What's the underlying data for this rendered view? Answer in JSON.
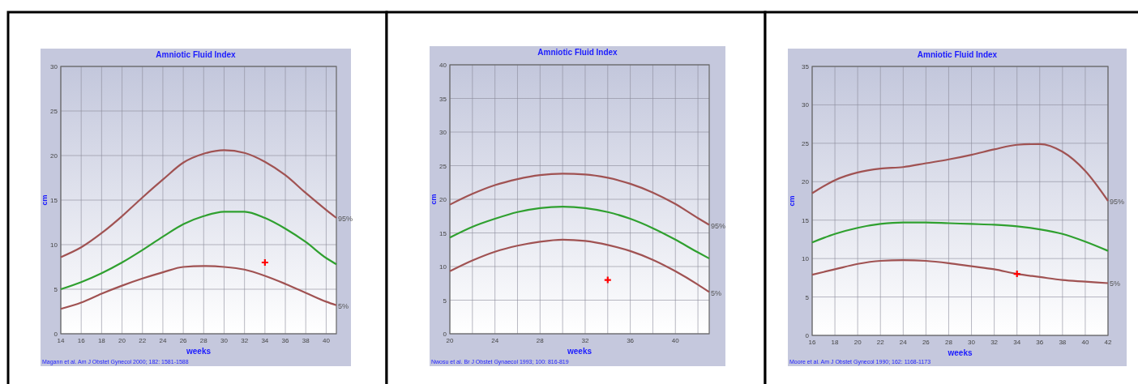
{
  "chart_data": [
    {
      "type": "line",
      "title": "Amniotic Fluid Index",
      "xlabel": "weeks",
      "ylabel": "cm",
      "xlim": [
        14,
        41
      ],
      "xticks": [
        14,
        16,
        18,
        20,
        22,
        24,
        26,
        28,
        30,
        32,
        34,
        36,
        38,
        40
      ],
      "ylim": [
        0,
        30
      ],
      "yticks": [
        0,
        5,
        10,
        15,
        20,
        25,
        30
      ],
      "grid": true,
      "annotations": [
        "Magann et al. Am J Obstet Gynecol 2000; 182: 1581-1588"
      ],
      "series": [
        {
          "name": "95%",
          "color": "#a05252",
          "x": [
            14,
            16,
            18,
            20,
            22,
            24,
            26,
            28,
            30,
            32,
            34,
            36,
            38,
            40,
            41
          ],
          "values": [
            8.6,
            9.7,
            11.3,
            13.2,
            15.3,
            17.3,
            19.2,
            20.2,
            20.6,
            20.3,
            19.3,
            17.8,
            15.8,
            13.9,
            13.0
          ]
        },
        {
          "color": "#2fa02f",
          "x": [
            14,
            16,
            18,
            20,
            22,
            24,
            26,
            28,
            30,
            32,
            34,
            36,
            38,
            40,
            41
          ],
          "values": [
            5.0,
            5.8,
            6.8,
            8.0,
            9.4,
            10.9,
            12.3,
            13.2,
            13.7,
            13.7,
            13.0,
            11.8,
            10.3,
            8.5,
            7.8
          ]
        },
        {
          "name": "5%",
          "color": "#a05252",
          "x": [
            14,
            16,
            18,
            20,
            22,
            24,
            26,
            28,
            30,
            32,
            34,
            36,
            38,
            40,
            41
          ],
          "values": [
            2.8,
            3.5,
            4.5,
            5.4,
            6.2,
            6.9,
            7.5,
            7.6,
            7.5,
            7.2,
            6.5,
            5.6,
            4.6,
            3.6,
            3.2
          ]
        },
        {
          "type": "scatter",
          "marker": "cross",
          "color": "#ff0000",
          "x": [
            34
          ],
          "values": [
            8
          ]
        }
      ]
    },
    {
      "type": "line",
      "title": "Amniotic Fluid Index",
      "xlabel": "weeks",
      "ylabel": "cm",
      "xlim": [
        20,
        43
      ],
      "xticks": [
        20,
        24,
        28,
        32,
        36,
        40
      ],
      "ylim": [
        0,
        40
      ],
      "yticks": [
        0,
        5,
        10,
        15,
        20,
        25,
        30,
        35,
        40
      ],
      "grid": true,
      "annotations": [
        "Nwosu et al. Br J Obstet Gynaecol 1993; 100: 816-819"
      ],
      "series": [
        {
          "name": "95%",
          "color": "#a05252",
          "x": [
            20,
            22,
            24,
            26,
            28,
            30,
            32,
            34,
            36,
            38,
            40,
            42,
            43
          ],
          "values": [
            19.2,
            20.8,
            22.1,
            23.0,
            23.6,
            23.8,
            23.7,
            23.2,
            22.3,
            21.0,
            19.3,
            17.2,
            16.2
          ]
        },
        {
          "color": "#2fa02f",
          "x": [
            20,
            22,
            24,
            26,
            28,
            30,
            32,
            34,
            36,
            38,
            40,
            42,
            43
          ],
          "values": [
            14.3,
            15.9,
            17.1,
            18.1,
            18.7,
            18.9,
            18.7,
            18.1,
            17.1,
            15.7,
            14.0,
            12.1,
            11.2
          ]
        },
        {
          "name": "5%",
          "color": "#a05252",
          "x": [
            20,
            22,
            24,
            26,
            28,
            30,
            32,
            34,
            36,
            38,
            40,
            42,
            43
          ],
          "values": [
            9.3,
            10.9,
            12.2,
            13.1,
            13.7,
            14.0,
            13.8,
            13.2,
            12.3,
            11.0,
            9.3,
            7.3,
            6.2
          ]
        },
        {
          "type": "scatter",
          "marker": "cross",
          "color": "#ff0000",
          "x": [
            34
          ],
          "values": [
            8
          ]
        }
      ]
    },
    {
      "type": "line",
      "title": "Amniotic Fluid Index",
      "xlabel": "weeks",
      "ylabel": "cm",
      "xlim": [
        16,
        42
      ],
      "xticks": [
        16,
        18,
        20,
        22,
        24,
        26,
        28,
        30,
        32,
        34,
        36,
        38,
        40,
        42
      ],
      "ylim": [
        0,
        35
      ],
      "yticks": [
        0,
        5,
        10,
        15,
        20,
        25,
        30,
        35
      ],
      "grid": true,
      "annotations": [
        "Moore et al. Am J Obstet Gynecol 1990; 162: 1168-1173"
      ],
      "series": [
        {
          "name": "95%",
          "color": "#a05252",
          "x": [
            16,
            18,
            20,
            22,
            24,
            26,
            28,
            30,
            32,
            34,
            36,
            38,
            40,
            42
          ],
          "values": [
            18.5,
            20.2,
            21.2,
            21.7,
            21.9,
            22.4,
            22.9,
            23.5,
            24.2,
            24.8,
            24.9,
            23.9,
            21.4,
            17.5
          ]
        },
        {
          "color": "#2fa02f",
          "x": [
            16,
            18,
            20,
            22,
            24,
            26,
            28,
            30,
            32,
            34,
            36,
            38,
            40,
            42
          ],
          "values": [
            12.1,
            13.2,
            14.0,
            14.5,
            14.7,
            14.7,
            14.6,
            14.5,
            14.4,
            14.2,
            13.8,
            13.2,
            12.2,
            11.0
          ]
        },
        {
          "name": "5%",
          "color": "#a05252",
          "x": [
            16,
            18,
            20,
            22,
            24,
            26,
            28,
            30,
            32,
            34,
            36,
            38,
            40,
            42
          ],
          "values": [
            7.9,
            8.6,
            9.3,
            9.7,
            9.8,
            9.7,
            9.4,
            9.0,
            8.6,
            8.0,
            7.6,
            7.2,
            7.0,
            6.8
          ]
        },
        {
          "type": "scatter",
          "marker": "cross",
          "color": "#ff0000",
          "x": [
            34
          ],
          "values": [
            8
          ]
        }
      ]
    }
  ]
}
